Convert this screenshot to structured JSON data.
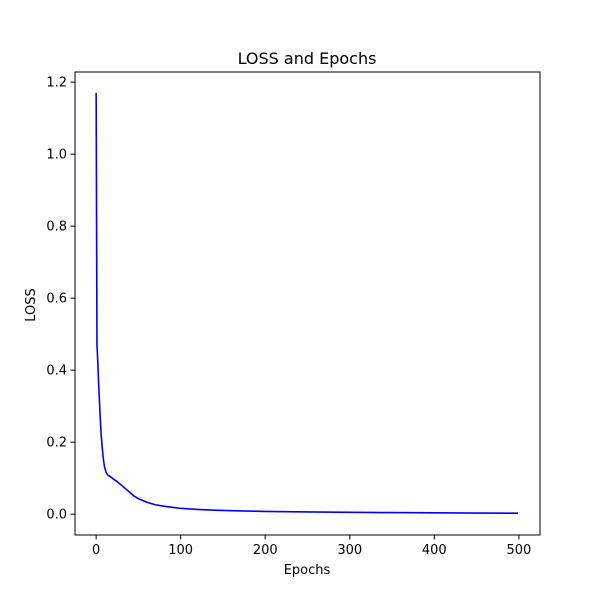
{
  "chart_data": {
    "type": "line",
    "title": "LOSS and Epochs",
    "xlabel": "Epochs",
    "ylabel": "LOSS",
    "xlim": [
      -25,
      525
    ],
    "ylim": [
      -0.058,
      1.228
    ],
    "xticks": [
      0,
      100,
      200,
      300,
      400,
      500
    ],
    "yticks": [
      0.0,
      0.2,
      0.4,
      0.6,
      0.8,
      1.0,
      1.2
    ],
    "ytick_labels": [
      "0.0",
      "0.2",
      "0.4",
      "0.6",
      "0.8",
      "1.0",
      "1.2"
    ],
    "grid": false,
    "series": [
      {
        "color": "#0000ff",
        "x": [
          0,
          1,
          2,
          3,
          4,
          5,
          6,
          7,
          8,
          9,
          10,
          12,
          14,
          16,
          18,
          20,
          25,
          30,
          35,
          40,
          45,
          50,
          60,
          70,
          80,
          90,
          100,
          120,
          140,
          160,
          180,
          200,
          250,
          300,
          350,
          400,
          450,
          499
        ],
        "y": [
          1.17,
          0.47,
          0.42,
          0.36,
          0.31,
          0.26,
          0.22,
          0.19,
          0.165,
          0.145,
          0.13,
          0.115,
          0.108,
          0.105,
          0.102,
          0.098,
          0.09,
          0.08,
          0.07,
          0.06,
          0.05,
          0.043,
          0.033,
          0.026,
          0.022,
          0.019,
          0.016,
          0.013,
          0.011,
          0.0095,
          0.0085,
          0.0075,
          0.006,
          0.005,
          0.0042,
          0.0035,
          0.003,
          0.0025
        ]
      }
    ]
  }
}
